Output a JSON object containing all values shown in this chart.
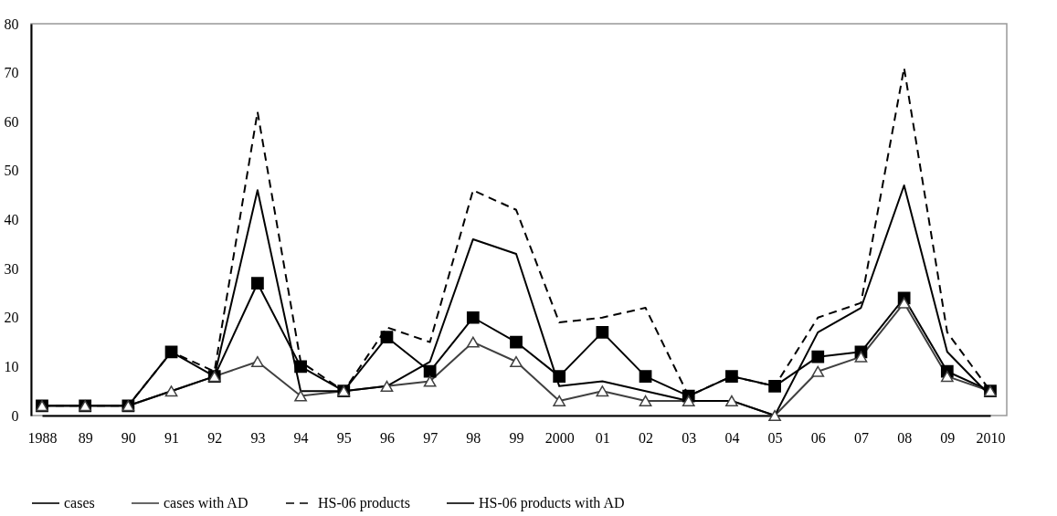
{
  "chart_data": {
    "type": "line",
    "categories": [
      "1988",
      "89",
      "90",
      "91",
      "92",
      "93",
      "94",
      "95",
      "96",
      "97",
      "98",
      "99",
      "2000",
      "01",
      "02",
      "03",
      "04",
      "05",
      "06",
      "07",
      "08",
      "09",
      "2010"
    ],
    "series": [
      {
        "name": "cases",
        "color": "#000000",
        "marker": "square",
        "line_style": "solid",
        "values": [
          2,
          2,
          2,
          13,
          8,
          27,
          10,
          5,
          16,
          9,
          20,
          15,
          8,
          17,
          8,
          4,
          8,
          6,
          12,
          13,
          24,
          9,
          5
        ]
      },
      {
        "name": "cases with AD",
        "color": "#404040",
        "marker": "triangle",
        "line_style": "solid",
        "values": [
          2,
          2,
          2,
          5,
          8,
          11,
          4,
          5,
          6,
          7,
          15,
          11,
          3,
          5,
          3,
          3,
          3,
          0,
          9,
          12,
          23,
          8,
          5
        ]
      },
      {
        "name": "HS-06 products",
        "color": "#000000",
        "marker": "none",
        "line_style": "dashed",
        "values": [
          2,
          2,
          2,
          13,
          9,
          62,
          11,
          5,
          18,
          15,
          46,
          42,
          19,
          20,
          22,
          4,
          8,
          6,
          20,
          23,
          71,
          17,
          5
        ]
      },
      {
        "name": "HS-06 products with AD",
        "color": "#000000",
        "marker": "none",
        "line_style": "solid",
        "values": [
          2,
          2,
          2,
          5,
          8,
          46,
          5,
          5,
          6,
          11,
          36,
          33,
          6,
          7,
          5,
          3,
          3,
          0,
          17,
          22,
          47,
          13,
          4
        ]
      }
    ],
    "ylim": [
      0,
      80
    ],
    "yticks": [
      0,
      10,
      20,
      30,
      40,
      50,
      60,
      70,
      80
    ],
    "grid": false,
    "legend": "bottom"
  }
}
